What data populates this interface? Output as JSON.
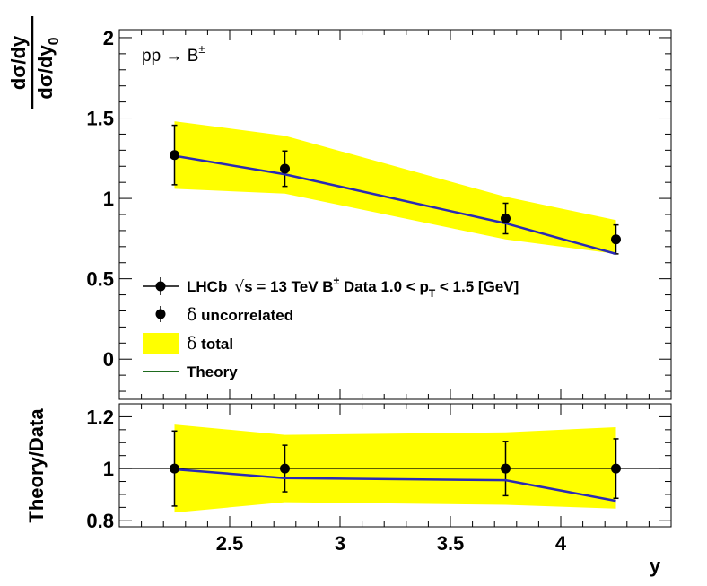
{
  "chart_data": [
    {
      "type": "line",
      "panel": "main",
      "x": [
        2.25,
        2.75,
        3.75,
        4.25
      ],
      "xlim": [
        2.0,
        4.5
      ],
      "ylim": [
        -0.25,
        2.05
      ],
      "ylabel_numerator": "dσ/dy",
      "ylabel_denominator": "dσ/dy",
      "ylabel_subscript": "0",
      "yticks": [
        "0",
        "0.5",
        "1",
        "1.5",
        "2"
      ],
      "annotation": {
        "main": "pp → B",
        "sup": "±"
      },
      "series": [
        {
          "name": "LHCb Data",
          "type": "points",
          "values": [
            1.27,
            1.185,
            0.875,
            0.745
          ],
          "err_uncorrelated": [
            0.185,
            0.11,
            0.095,
            0.09
          ],
          "band_total_low": [
            1.06,
            1.03,
            0.745,
            0.655
          ],
          "band_total_high": [
            1.48,
            1.39,
            1.01,
            0.865
          ]
        },
        {
          "name": "Theory",
          "type": "line",
          "color": "#2a2ab5",
          "values": [
            1.265,
            1.15,
            0.845,
            0.655
          ]
        }
      ],
      "legend": {
        "position": "bottom-left",
        "entries": [
          {
            "label": "LHCb  √s = 13 TeV B± Data 1.0 < p_T < 1.5 [GeV]",
            "lhcb": "LHCb",
            "sqrt": "√",
            "s_eq": "s = 13 TeV B",
            "pm": "±",
            "data_range": " Data 1.0 < p",
            "p_sub": "T",
            "range_tail": " < 1.5 [GeV]"
          },
          {
            "label": "δ uncorrelated",
            "delta": "δ",
            "text": " uncorrelated"
          },
          {
            "label": "δ total",
            "delta": "δ",
            "text": " total"
          },
          {
            "label": "Theory",
            "text": "Theory"
          }
        ]
      }
    },
    {
      "type": "line",
      "panel": "ratio",
      "xlabel": "y",
      "ylabel": "Theory/Data",
      "x": [
        2.25,
        2.75,
        3.75,
        4.25
      ],
      "xlim": [
        2.0,
        4.5
      ],
      "ylim": [
        0.775,
        1.25
      ],
      "xticks": [
        "2.5",
        "3",
        "3.5",
        "4"
      ],
      "yticks": [
        "0.8",
        "1",
        "1.2"
      ],
      "reference_line": 1.0,
      "series": [
        {
          "name": "Data ratio",
          "type": "points",
          "values": [
            1.0,
            1.0,
            1.0,
            1.0
          ],
          "err_uncorrelated": [
            0.145,
            0.09,
            0.105,
            0.115
          ],
          "band_total_low": [
            0.83,
            0.87,
            0.86,
            0.845
          ],
          "band_total_high": [
            1.17,
            1.13,
            1.14,
            1.16
          ]
        },
        {
          "name": "Theory/Data",
          "type": "line",
          "color": "#2a2ab5",
          "values": [
            0.997,
            0.963,
            0.955,
            0.875
          ]
        }
      ]
    }
  ],
  "colors": {
    "band": "#ffff00",
    "theory": "#2a2ab5",
    "legend_theory": "#1e6b1e",
    "marker": "#000000"
  }
}
